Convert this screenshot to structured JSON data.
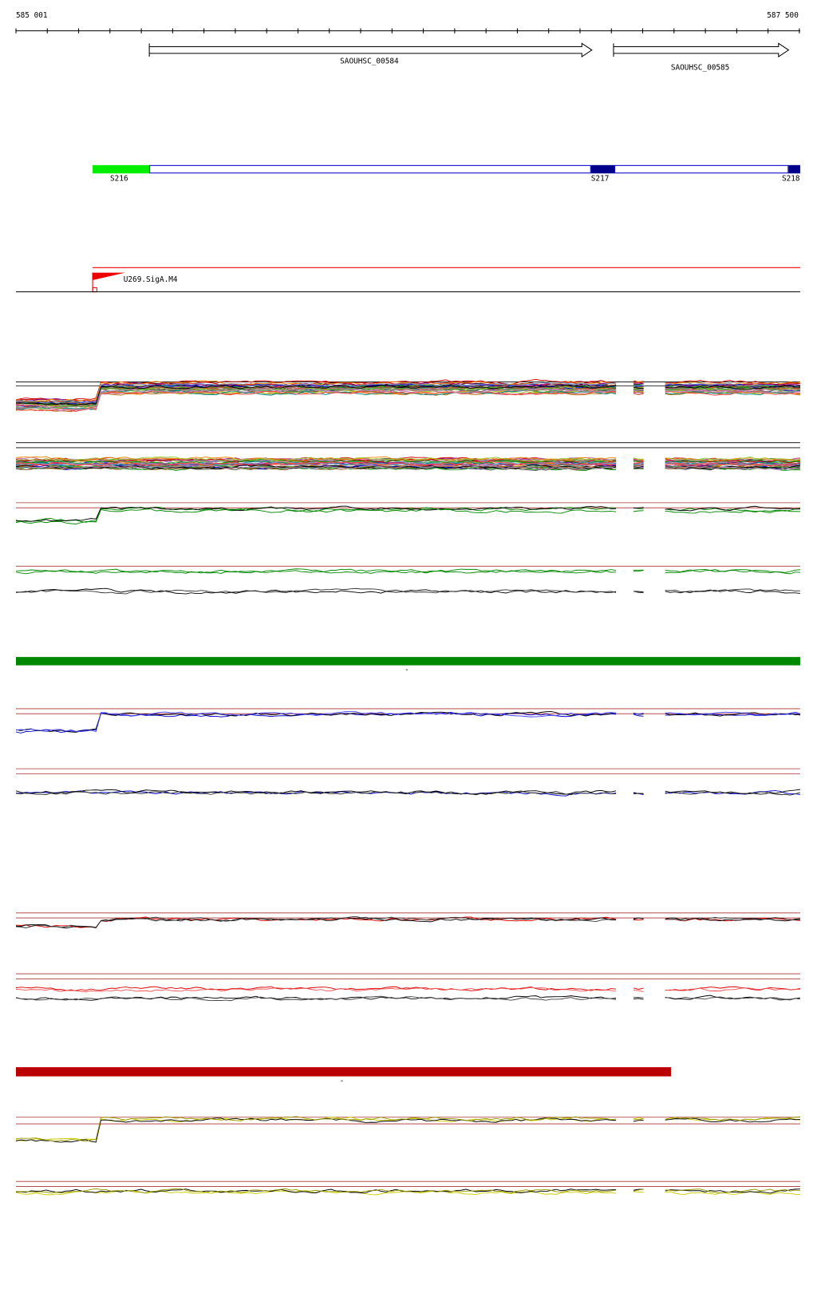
{
  "ruler": {
    "start": "585 001",
    "end": "587 500"
  },
  "genes": [
    {
      "label": "SAOUHSC_00584"
    },
    {
      "label": "SAOUHSC_00585"
    }
  ],
  "segments": [
    {
      "label": "S216"
    },
    {
      "label": "S217"
    },
    {
      "label": "S218"
    }
  ],
  "promoter": {
    "label": "U269.SigA.M4"
  },
  "markers": [
    "-",
    "-"
  ]
}
